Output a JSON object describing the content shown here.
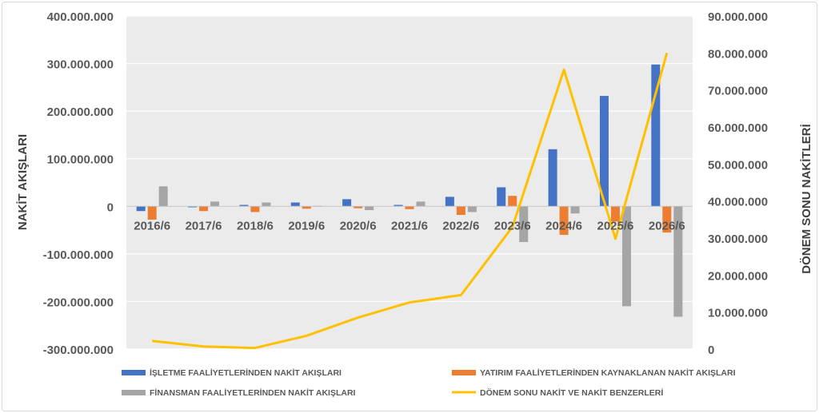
{
  "chart_data": {
    "type": "bar",
    "categories": [
      "2016/6",
      "2017/6",
      "2018/6",
      "2019/6",
      "2020/6",
      "2021/6",
      "2022/6",
      "2023/6",
      "2024/6",
      "2025/6",
      "2026/6"
    ],
    "ylabel": "NAKİT AKIŞLARI",
    "y2label": "DÖNEM SONU NAKİTLERİ",
    "ylim": [
      -300000000,
      400000000
    ],
    "y2lim": [
      0,
      90000000
    ],
    "yticks": [
      "400.000.000",
      "300.000.000",
      "200.000.000",
      "100.000.000",
      "0",
      "-100.000.000",
      "-200.000.000",
      "-300.000.000"
    ],
    "y2ticks": [
      "90.000.000",
      "80.000.000",
      "70.000.000",
      "60.000.000",
      "50.000.000",
      "40.000.000",
      "30.000.000",
      "20.000.000",
      "10.000.000",
      "0"
    ],
    "grid": true,
    "legend_position": "bottom",
    "series": [
      {
        "name": "İŞLETME FAALİYETLERİNDEN NAKİT AKIŞLARI",
        "type": "bar",
        "axis": "left",
        "color": "#4472C4",
        "values": [
          -10000000,
          -2000000,
          3000000,
          8000000,
          15000000,
          3000000,
          20000000,
          40000000,
          120000000,
          232000000,
          298000000
        ]
      },
      {
        "name": "YATIRIM FAALİYETLERİNDEN KAYNAKLANAN NAKİT AKIŞLARI",
        "type": "bar",
        "axis": "left",
        "color": "#ED7D31",
        "values": [
          -28000000,
          -10000000,
          -12000000,
          -5000000,
          -4000000,
          -6000000,
          -18000000,
          22000000,
          -60000000,
          -32000000,
          -55000000
        ]
      },
      {
        "name": "FİNANSMAN FAALİYETLERİNDEN NAKİT AKIŞLARI",
        "type": "bar",
        "axis": "left",
        "color": "#A5A5A5",
        "values": [
          42000000,
          10000000,
          8000000,
          1000000,
          -8000000,
          10000000,
          -12000000,
          -75000000,
          -15000000,
          -210000000,
          -232000000
        ]
      },
      {
        "name": "DÖNEM SONU NAKİT VE NAKİT BENZERLERİ",
        "type": "line",
        "axis": "right",
        "color": "#FFC000",
        "values": [
          2200000,
          700000,
          300000,
          3600000,
          8500000,
          12600000,
          14600000,
          33000000,
          75500000,
          29800000,
          80000000
        ]
      }
    ]
  }
}
